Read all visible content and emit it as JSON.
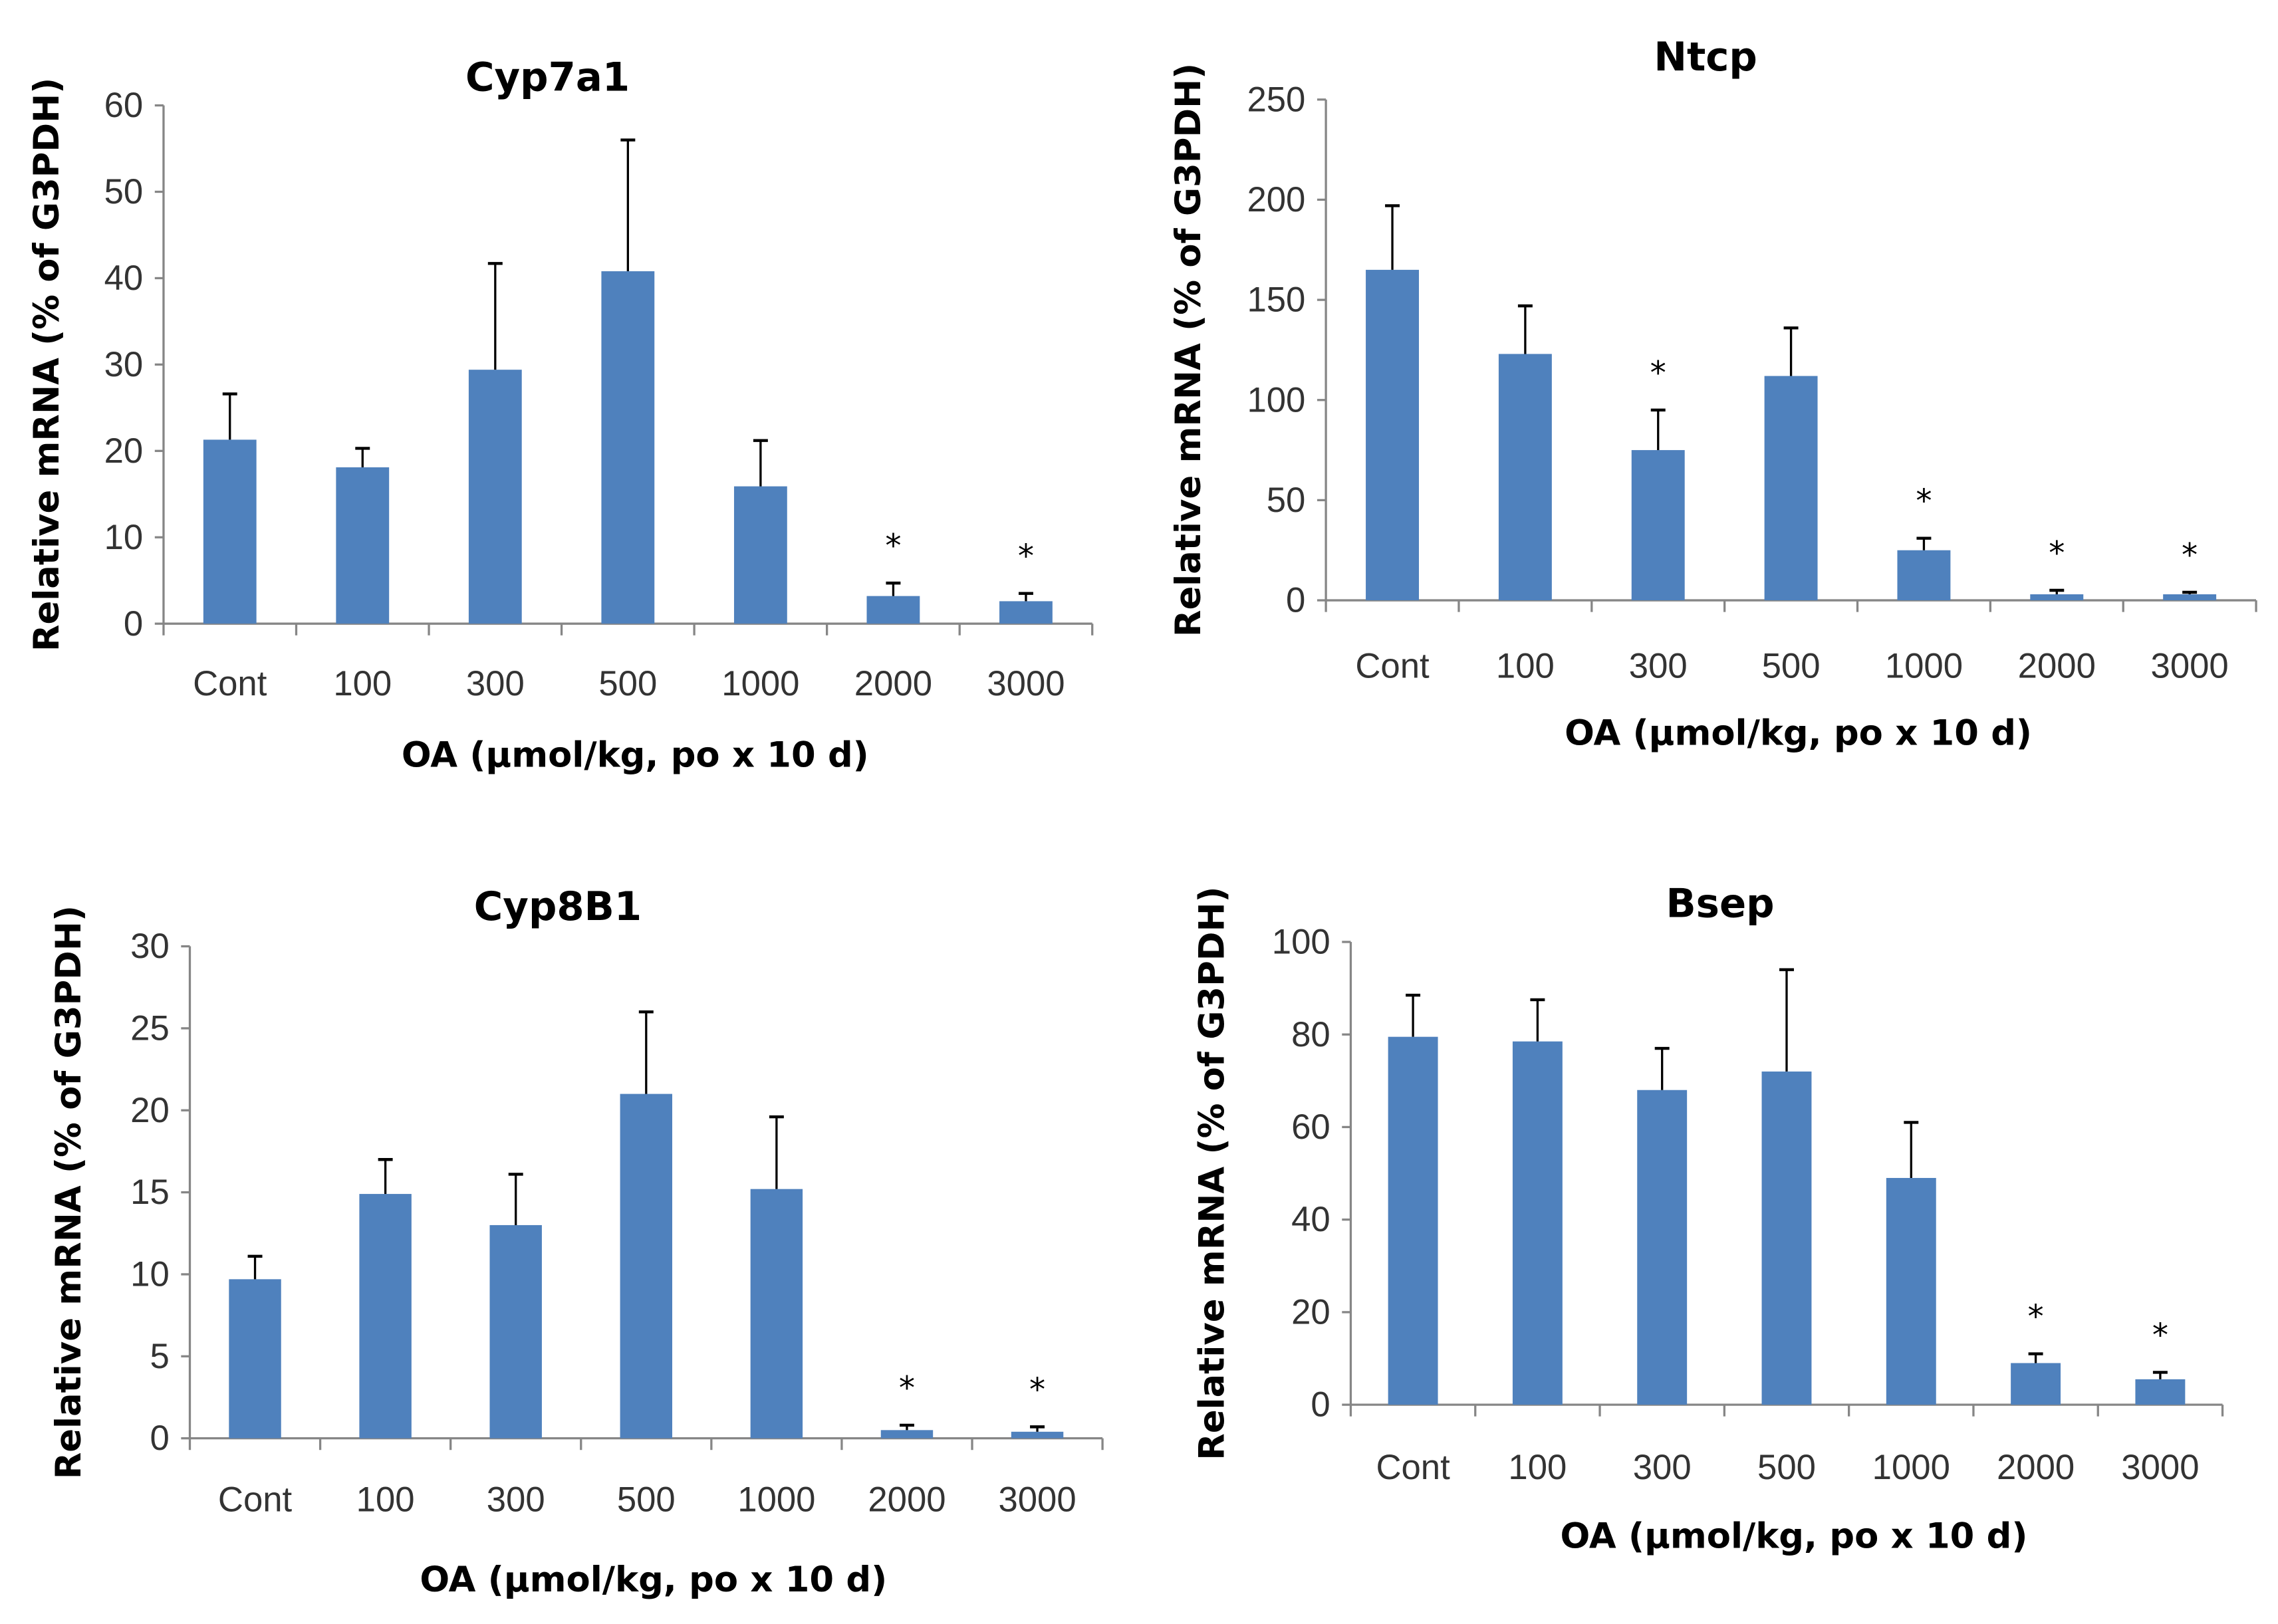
{
  "colors": {
    "bar": "#4f81bd",
    "axis": "#868686",
    "error_bar": "#000000"
  },
  "chart_data": [
    {
      "type": "bar",
      "title": "Cyp7a1",
      "xlabel": "OA (µmol/kg, po x 10 d)",
      "ylabel": "Relative mRNA (% of G3PDH)",
      "categories": [
        "Cont",
        "100",
        "300",
        "500",
        "1000",
        "2000",
        "3000"
      ],
      "values": [
        21.3,
        18.1,
        29.4,
        40.8,
        15.9,
        3.2,
        2.6
      ],
      "errors": [
        5.3,
        2.2,
        12.3,
        15.2,
        5.3,
        1.5,
        0.9
      ],
      "significant": [
        false,
        false,
        false,
        false,
        false,
        true,
        true
      ],
      "significance_marker": "*",
      "ylim": [
        0,
        60
      ],
      "yticks": [
        "0",
        "10",
        "20",
        "30",
        "40",
        "50",
        "60"
      ],
      "grid": false
    },
    {
      "type": "bar",
      "title": "Ntcp",
      "xlabel": "OA (µmol/kg, po x 10 d)",
      "ylabel": "Relative mRNA (% of G3PDH)",
      "categories": [
        "Cont",
        "100",
        "300",
        "500",
        "1000",
        "2000",
        "3000"
      ],
      "values": [
        165,
        123,
        75,
        112,
        25,
        3,
        3
      ],
      "errors": [
        32,
        24,
        20,
        24,
        6,
        2,
        1
      ],
      "significant": [
        false,
        false,
        true,
        false,
        true,
        true,
        true
      ],
      "significance_marker": "*",
      "ylim": [
        0,
        250
      ],
      "yticks": [
        "0",
        "50",
        "100",
        "150",
        "200",
        "250"
      ],
      "grid": false
    },
    {
      "type": "bar",
      "title": "Cyp8B1",
      "xlabel": "OA (µmol/kg, po x 10 d)",
      "ylabel": "Relative mRNA (% of G3PDH)",
      "categories": [
        "Cont",
        "100",
        "300",
        "500",
        "1000",
        "2000",
        "3000"
      ],
      "values": [
        9.7,
        14.9,
        13.0,
        21.0,
        15.2,
        0.5,
        0.4
      ],
      "errors": [
        1.4,
        2.1,
        3.1,
        5.0,
        4.4,
        0.3,
        0.3
      ],
      "significant": [
        false,
        false,
        false,
        false,
        false,
        true,
        true
      ],
      "significance_marker": "*",
      "ylim": [
        0,
        30
      ],
      "yticks": [
        "0",
        "5",
        "10",
        "15",
        "20",
        "25",
        "30"
      ],
      "grid": false
    },
    {
      "type": "bar",
      "title": "Bsep",
      "xlabel": "OA (µmol/kg, po x 10 d)",
      "ylabel": "Relative mRNA (% of G3PDH)",
      "categories": [
        "Cont",
        "100",
        "300",
        "500",
        "1000",
        "2000",
        "3000"
      ],
      "values": [
        79.5,
        78.5,
        68,
        72,
        49,
        9,
        5.5
      ],
      "errors": [
        9,
        9,
        9,
        22,
        12,
        2,
        1.5
      ],
      "significant": [
        false,
        false,
        false,
        false,
        false,
        true,
        true
      ],
      "significance_marker": "*",
      "ylim": [
        0,
        100
      ],
      "yticks": [
        "0",
        "20",
        "40",
        "60",
        "80",
        "100"
      ],
      "grid": false
    }
  ]
}
